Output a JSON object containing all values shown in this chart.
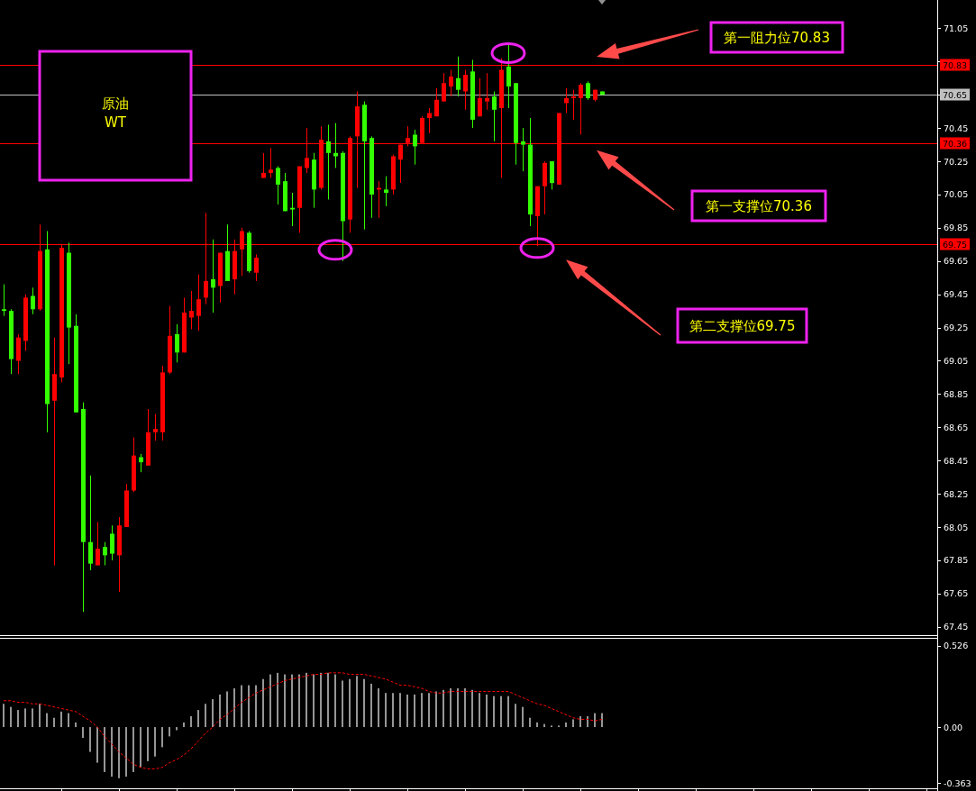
{
  "chart_data": [
    {
      "type": "candlestick",
      "categories": [
        null,
        null,
        null,
        null,
        null,
        null,
        null,
        null,
        null,
        null,
        null,
        null,
        null,
        null,
        null,
        null,
        null,
        null,
        null,
        null,
        null,
        null,
        null,
        null,
        null,
        null,
        null,
        null,
        null,
        null,
        null,
        null,
        null,
        null,
        null,
        null,
        null,
        null,
        null,
        null,
        null,
        null,
        null,
        null,
        null,
        null,
        null,
        null,
        null,
        null,
        null,
        null,
        null,
        null,
        null,
        null,
        null,
        null,
        null,
        null,
        null,
        null,
        null,
        null,
        null,
        null,
        null,
        null,
        null,
        null,
        null,
        null,
        null,
        null,
        null,
        null,
        null,
        null,
        null,
        null,
        null,
        null,
        null,
        null,
        null,
        null,
        null,
        null,
        null,
        null,
        null,
        null,
        null,
        null,
        null,
        null,
        null,
        null,
        null,
        null,
        null,
        null,
        null,
        null,
        null,
        null,
        null,
        null,
        null,
        null,
        null,
        null,
        null,
        null,
        null,
        null,
        null,
        null,
        null,
        null,
        null,
        null,
        null,
        null,
        null,
        null,
        null,
        null,
        null,
        null
      ],
      "ohlc": [
        [
          69.36,
          69.51,
          69.32,
          69.35
        ],
        [
          69.35,
          69.36,
          68.97,
          69.06
        ],
        [
          69.05,
          69.21,
          68.97,
          69.19
        ],
        [
          69.17,
          69.45,
          69.11,
          69.43
        ],
        [
          69.44,
          69.49,
          69.33,
          69.36
        ],
        [
          69.36,
          69.87,
          69.35,
          69.71
        ],
        [
          69.72,
          69.83,
          68.62,
          68.79
        ],
        [
          68.81,
          69.19,
          67.82,
          68.97
        ],
        [
          68.95,
          69.75,
          68.92,
          69.73
        ],
        [
          69.7,
          69.76,
          69.03,
          69.25
        ],
        [
          69.26,
          69.33,
          68.74,
          68.74
        ],
        [
          68.76,
          68.8,
          67.54,
          67.96
        ],
        [
          67.96,
          68.36,
          67.79,
          67.83
        ],
        [
          67.82,
          68.08,
          67.82,
          67.92
        ],
        [
          67.93,
          67.96,
          67.82,
          67.88
        ],
        [
          68.01,
          68.06,
          67.85,
          67.89
        ],
        [
          67.88,
          68.11,
          67.66,
          68.06
        ],
        [
          68.05,
          68.31,
          68.05,
          68.27
        ],
        [
          68.27,
          68.59,
          68.26,
          68.48
        ],
        [
          68.47,
          68.49,
          68.38,
          68.44
        ],
        [
          68.42,
          68.76,
          68.42,
          68.62
        ],
        [
          68.62,
          68.73,
          68.57,
          68.64
        ],
        [
          68.62,
          69.02,
          68.57,
          68.98
        ],
        [
          68.98,
          69.38,
          68.97,
          69.2
        ],
        [
          69.21,
          69.27,
          69.04,
          69.1
        ],
        [
          69.1,
          69.43,
          69.1,
          69.34
        ],
        [
          69.31,
          69.47,
          69.24,
          69.35
        ],
        [
          69.32,
          69.57,
          69.23,
          69.42
        ],
        [
          69.43,
          69.94,
          69.39,
          69.53
        ],
        [
          69.54,
          69.78,
          69.34,
          69.49
        ],
        [
          69.5,
          69.7,
          69.4,
          69.7
        ],
        [
          69.71,
          69.87,
          69.53,
          69.53
        ],
        [
          69.54,
          69.78,
          69.45,
          69.71
        ],
        [
          69.72,
          69.85,
          69.56,
          69.83
        ],
        [
          69.82,
          69.83,
          69.58,
          69.59
        ],
        [
          69.58,
          69.69,
          69.53,
          69.67
        ],
        [
          70.15,
          70.3,
          70.15,
          70.18
        ],
        [
          70.18,
          70.33,
          70.15,
          70.2
        ],
        [
          70.21,
          70.22,
          69.99,
          70.11
        ],
        [
          70.13,
          70.18,
          69.95,
          69.95
        ],
        [
          69.97,
          70.06,
          69.86,
          69.96
        ],
        [
          69.97,
          70.22,
          69.82,
          70.22
        ],
        [
          70.21,
          70.45,
          70.18,
          70.27
        ],
        [
          70.26,
          70.3,
          69.97,
          70.08
        ],
        [
          70.09,
          70.46,
          70.08,
          70.38
        ],
        [
          70.37,
          70.47,
          70.02,
          70.3
        ],
        [
          70.3,
          70.48,
          70.21,
          70.28
        ],
        [
          70.3,
          70.31,
          69.65,
          69.89
        ],
        [
          69.9,
          70.4,
          69.82,
          70.39
        ],
        [
          70.4,
          70.67,
          70.09,
          70.58
        ],
        [
          70.59,
          70.61,
          69.84,
          70.37
        ],
        [
          70.39,
          70.4,
          69.91,
          70.05
        ],
        [
          70.08,
          70.13,
          69.91,
          70.09
        ],
        [
          70.08,
          70.16,
          69.98,
          70.06
        ],
        [
          70.08,
          70.29,
          70.05,
          70.28
        ],
        [
          70.26,
          70.35,
          70.12,
          70.35
        ],
        [
          70.36,
          70.46,
          70.34,
          70.39
        ],
        [
          70.41,
          70.44,
          70.23,
          70.34
        ],
        [
          70.36,
          70.52,
          70.36,
          70.51
        ],
        [
          70.51,
          70.57,
          70.42,
          70.54
        ],
        [
          70.52,
          70.69,
          70.52,
          70.62
        ],
        [
          70.61,
          70.78,
          70.61,
          70.72
        ],
        [
          70.7,
          70.8,
          70.64,
          70.76
        ],
        [
          70.75,
          70.88,
          70.64,
          70.68
        ],
        [
          70.67,
          70.8,
          70.56,
          70.77
        ],
        [
          70.79,
          70.86,
          70.45,
          70.5
        ],
        [
          70.52,
          70.75,
          70.52,
          70.63
        ],
        [
          70.61,
          70.78,
          70.56,
          70.63
        ],
        [
          70.64,
          70.67,
          70.37,
          70.56
        ],
        [
          70.57,
          70.87,
          70.15,
          70.8
        ],
        [
          70.82,
          70.95,
          70.57,
          70.7
        ],
        [
          70.72,
          70.72,
          70.23,
          70.36
        ],
        [
          70.37,
          70.45,
          70.19,
          70.35
        ],
        [
          70.35,
          70.51,
          69.86,
          69.93
        ],
        [
          69.92,
          70.1,
          69.74,
          70.1
        ],
        [
          70.1,
          70.25,
          69.93,
          70.24
        ],
        [
          70.25,
          70.25,
          70.08,
          70.12
        ],
        [
          70.11,
          70.54,
          70.11,
          70.54
        ],
        [
          70.6,
          70.69,
          70.54,
          70.63
        ],
        [
          70.63,
          70.68,
          70.5,
          70.64
        ],
        [
          70.63,
          70.72,
          70.41,
          70.71
        ],
        [
          70.72,
          70.73,
          70.62,
          70.63
        ],
        [
          70.62,
          70.68,
          70.61,
          70.68
        ],
        [
          70.67,
          70.67,
          70.65,
          70.65
        ],
        null,
        null,
        null,
        null,
        null,
        null,
        null,
        null,
        null,
        null,
        null,
        null,
        null,
        null,
        null,
        null,
        null,
        null,
        null,
        null,
        null,
        null,
        null,
        null,
        null,
        null,
        null,
        null,
        null,
        null,
        null,
        null,
        null,
        null,
        null,
        null,
        null,
        null,
        null,
        null,
        null,
        null,
        null,
        null,
        null,
        null
      ],
      "colors": [
        "#33ff00",
        "#33ff00",
        "#ff0000",
        "#ff0000",
        "#33ff00",
        "#ff0000",
        "#33ff00",
        "#ff0000",
        "#ff0000",
        "#33ff00",
        "#33ff00",
        "#33ff00",
        "#33ff00",
        "#ff0000",
        "#33ff00",
        "#33ff00",
        "#ff0000",
        "#ff0000",
        "#ff0000",
        "#33ff00",
        "#ff0000",
        "#ff0000",
        "#ff0000",
        "#ff0000",
        "#33ff00",
        "#ff0000",
        "#ff0000",
        "#ff0000",
        "#ff0000",
        "#33ff00",
        "#ff0000",
        "#33ff00",
        "#ff0000",
        "#ff0000",
        "#33ff00",
        "#ff0000",
        "#ff0000",
        "#ff0000",
        "#33ff00",
        "#33ff00",
        "#33ff00",
        "#ff0000",
        "#ff0000",
        "#33ff00",
        "#ff0000",
        "#33ff00",
        "#33ff00",
        "#33ff00",
        "#ff0000",
        "#ff0000",
        "#33ff00",
        "#33ff00",
        "#ff0000",
        "#33ff00",
        "#ff0000",
        "#ff0000",
        "#ff0000",
        "#33ff00",
        "#ff0000",
        "#ff0000",
        "#ff0000",
        "#ff0000",
        "#ff0000",
        "#33ff00",
        "#ff0000",
        "#33ff00",
        "#ff0000",
        "#ff0000",
        "#33ff00",
        "#ff0000",
        "#33ff00",
        "#33ff00",
        "#33ff00",
        "#33ff00",
        "#ff0000",
        "#ff0000",
        "#33ff00",
        "#ff0000",
        "#ff0000",
        "#ff0000",
        "#ff0000",
        "#33ff00",
        "#ff0000",
        "#33ff00",
        null,
        null,
        null,
        null,
        null,
        null,
        null,
        null,
        null,
        null,
        null,
        null,
        null,
        null,
        null,
        null,
        null,
        null,
        null,
        null,
        null,
        null,
        null,
        null,
        null,
        null,
        null,
        null,
        null,
        null,
        null,
        null,
        null,
        null,
        null,
        null,
        null,
        null,
        null,
        null,
        null,
        null,
        null,
        null,
        null,
        null
      ],
      "ylim": [
        67.4,
        71.22
      ],
      "yticks": [
        71.05,
        {
          "value": 70.85,
          "label": null
        },
        {
          "value": 70.65,
          "label": null
        },
        70.45,
        70.25,
        70.05,
        69.85,
        69.65,
        69.45,
        69.25,
        69.05,
        68.85,
        68.65,
        68.45,
        68.25,
        68.05,
        67.85,
        67.65,
        67.45
      ],
      "tick_labels": "y",
      "ref_lines": [
        {
          "axis": "y",
          "value": 70.83,
          "label": "70.83",
          "color": "#ff0000"
        },
        {
          "axis": "y",
          "value": 70.65,
          "label": "70.65",
          "color": "#c0c0c0"
        },
        {
          "axis": "y",
          "value": 70.36,
          "label": "70.36",
          "color": "#ff0000"
        },
        {
          "axis": "y",
          "value": 69.75,
          "label": "69.75",
          "color": "#ff0000"
        }
      ],
      "annotations": [
        "原油\nWT",
        {
          "text": "第一阻力位70.83",
          "y": 70.83
        },
        "第一支撑位70.36",
        "第二支撑位69.75"
      ]
    },
    {
      "type": "bar",
      "categories": [
        null,
        null,
        null,
        null,
        null,
        null,
        null,
        null,
        null,
        null,
        null,
        null,
        null,
        null,
        null,
        null,
        null,
        null,
        null,
        null,
        null,
        null,
        null,
        null,
        null,
        null,
        null,
        null,
        null,
        null,
        null,
        null,
        null,
        null,
        null,
        null,
        null,
        null,
        null,
        null,
        null,
        null,
        null,
        null,
        null,
        null,
        null,
        null,
        null,
        null,
        null,
        null,
        null,
        null,
        null,
        null,
        null,
        null,
        null,
        null,
        null,
        null,
        null,
        null,
        null,
        null,
        null,
        null,
        null,
        null,
        null,
        null,
        null,
        null,
        null,
        null,
        null,
        null,
        null,
        null,
        null,
        null,
        null,
        null,
        null,
        null,
        null,
        null,
        null,
        null,
        null,
        null,
        null,
        null,
        null,
        null,
        null,
        null,
        null,
        null,
        null,
        null,
        null,
        null,
        null,
        null,
        null,
        null,
        null,
        null,
        null,
        null,
        null,
        null,
        null,
        null,
        null,
        null,
        null,
        null,
        null,
        null,
        null,
        null,
        null,
        null,
        null,
        null,
        null,
        null
      ],
      "series": [
        {
          "type": "bar",
          "color": "#c8c8c8",
          "values": [
            0.15,
            0.13,
            0.11,
            0.12,
            0.12,
            0.15,
            0.09,
            0.06,
            0.1,
            0.09,
            0.03,
            -0.07,
            -0.16,
            -0.23,
            -0.29,
            -0.32,
            -0.33,
            -0.32,
            -0.29,
            -0.26,
            -0.22,
            -0.19,
            -0.13,
            -0.06,
            -0.02,
            0.03,
            0.07,
            0.11,
            0.15,
            0.18,
            0.21,
            0.23,
            0.25,
            0.27,
            0.27,
            0.27,
            0.31,
            0.34,
            0.35,
            0.34,
            0.34,
            0.34,
            0.35,
            0.34,
            0.35,
            0.35,
            0.34,
            0.3,
            0.31,
            0.33,
            0.31,
            0.28,
            0.25,
            0.22,
            0.22,
            0.22,
            0.21,
            0.21,
            0.22,
            0.22,
            0.23,
            0.24,
            0.25,
            0.25,
            0.25,
            0.24,
            0.22,
            0.21,
            0.2,
            0.2,
            0.2,
            0.15,
            0.13,
            0.06,
            0.03,
            0.02,
            0.01,
            0.01,
            0.03,
            0.05,
            0.07,
            0.07,
            0.09,
            0.09,
            null,
            null,
            null,
            null,
            null,
            null,
            null,
            null,
            null,
            null,
            null,
            null,
            null,
            null,
            null,
            null,
            null,
            null,
            null,
            null,
            null,
            null,
            null,
            null,
            null,
            null,
            null,
            null,
            null,
            null,
            null,
            null,
            null,
            null,
            null,
            null,
            null,
            null,
            null,
            null,
            null,
            null,
            null,
            null,
            null,
            null
          ]
        },
        {
          "type": "line",
          "color": "#ff0000",
          "values": [
            0.17,
            0.17,
            0.16,
            0.16,
            0.15,
            0.15,
            0.14,
            0.13,
            0.12,
            0.11,
            0.1,
            0.07,
            0.04,
            0.0,
            -0.06,
            -0.11,
            -0.16,
            -0.2,
            -0.24,
            -0.26,
            -0.27,
            -0.27,
            -0.26,
            -0.23,
            -0.21,
            -0.18,
            -0.14,
            -0.09,
            -0.04,
            0.0,
            0.05,
            0.08,
            0.12,
            0.16,
            0.19,
            0.22,
            0.24,
            0.26,
            0.28,
            0.3,
            0.31,
            0.32,
            0.33,
            0.34,
            0.34,
            0.35,
            0.35,
            0.35,
            0.34,
            0.34,
            0.34,
            0.33,
            0.32,
            0.31,
            0.29,
            0.27,
            0.27,
            0.26,
            0.25,
            0.23,
            0.22,
            0.22,
            0.23,
            0.23,
            0.23,
            0.23,
            0.23,
            0.23,
            0.23,
            0.23,
            0.23,
            0.21,
            0.19,
            0.17,
            0.15,
            0.14,
            0.12,
            0.1,
            0.08,
            0.06,
            0.05,
            0.05,
            0.04,
            0.05,
            null,
            null,
            null,
            null,
            null,
            null,
            null,
            null,
            null,
            null,
            null,
            null,
            null,
            null,
            null,
            null,
            null,
            null,
            null,
            null,
            null,
            null,
            null,
            null,
            null,
            null,
            null,
            null,
            null,
            null,
            null,
            null,
            null,
            null,
            null,
            null,
            null,
            null,
            null,
            null,
            null,
            null,
            null,
            null,
            null,
            null
          ]
        }
      ],
      "ylim": [
        -0.395,
        0.57
      ],
      "yticks": [
        0.526,
        {
          "value": 0,
          "label": "0.00"
        },
        -0.363
      ],
      "tick_labels": "y",
      "line_style": "dashed"
    }
  ]
}
